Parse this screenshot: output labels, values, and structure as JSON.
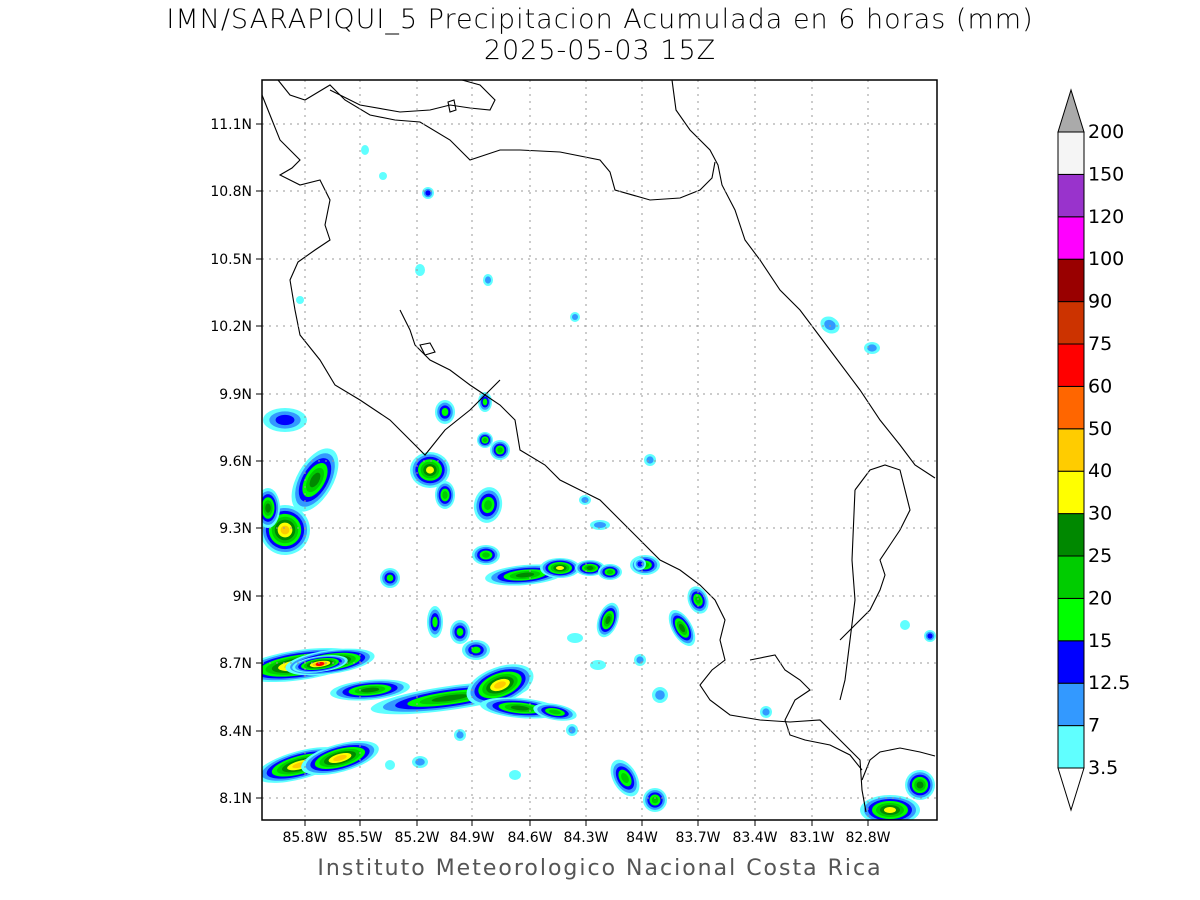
{
  "title_line1": "IMN/SARAPIQUI_5 Precipitacion Acumulada en 6 horas (mm)",
  "title_line2": "2025-05-03 15Z",
  "footer": "Instituto Meteorologico Nacional Costa Rica",
  "map": {
    "lat_ticks": [
      "11.1N",
      "10.8N",
      "10.5N",
      "10.2N",
      "9.9N",
      "9.6N",
      "9.3N",
      "9N",
      "8.7N",
      "8.4N",
      "8.1N"
    ],
    "lon_ticks": [
      "85.8W",
      "85.5W",
      "85.2W",
      "84.9W",
      "84.6W",
      "84.3W",
      "84W",
      "83.7W",
      "83.4W",
      "83.1W",
      "82.8W"
    ],
    "grid": true
  },
  "colorbar": {
    "levels": [
      "3.5",
      "7",
      "12.5",
      "15",
      "20",
      "25",
      "30",
      "40",
      "50",
      "60",
      "75",
      "90",
      "100",
      "120",
      "150",
      "200"
    ],
    "colors": [
      "#60ffff",
      "#3399ff",
      "#0000ff",
      "#00ff00",
      "#00cc00",
      "#008800",
      "#ffff00",
      "#ffcc00",
      "#ff6600",
      "#ff0000",
      "#cc3300",
      "#990000",
      "#ff00ff",
      "#9933cc",
      "#f5f5f5",
      "#aaaaaa"
    ],
    "under_color": "#ffffff"
  },
  "precip_colors": {
    "c1": "#60ffff",
    "c2": "#3399ff",
    "c3": "#0000ff",
    "c4": "#00ff00",
    "c5": "#00cc00",
    "c6": "#008800",
    "c7": "#ffff00",
    "c8": "#ffcc00",
    "c9": "#ff0000"
  }
}
